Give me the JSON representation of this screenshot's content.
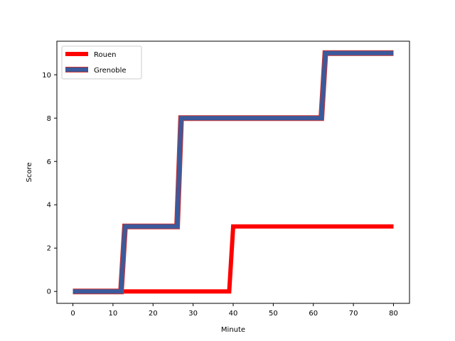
{
  "chart_data": {
    "type": "line",
    "title": "",
    "xlabel": "Minute",
    "ylabel": "Score",
    "xlim": [
      -4,
      84
    ],
    "ylim": [
      -0.55,
      11.55
    ],
    "xticks": [
      0,
      10,
      20,
      30,
      40,
      50,
      60,
      70,
      80
    ],
    "yticks": [
      0,
      2,
      4,
      6,
      8,
      10
    ],
    "grid": false,
    "legend": {
      "placement": "top-left"
    },
    "series": [
      {
        "name": "Rouen",
        "color": "#ff0000",
        "x": [
          0,
          39,
          40,
          80
        ],
        "y": [
          0,
          0,
          3,
          3
        ]
      },
      {
        "name": "Grenoble",
        "color": "#3a5a9c",
        "edge_color": "#cc3333",
        "x": [
          0,
          12,
          13,
          26,
          27,
          62,
          63,
          80
        ],
        "y": [
          0,
          0,
          3,
          3,
          8,
          8,
          11,
          11
        ]
      }
    ]
  }
}
